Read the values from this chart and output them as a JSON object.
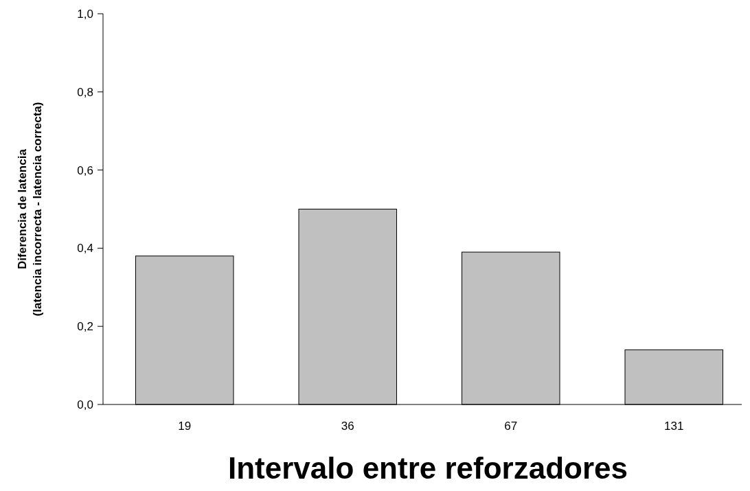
{
  "chart_data": {
    "type": "bar",
    "xlabel": "Intervalo entre reforzadores",
    "ylabel": "Diferencia de latencia\n(latencia incorrecta - latencia correcta)",
    "categories": [
      "19",
      "36",
      "67",
      "131"
    ],
    "values": [
      0.38,
      0.5,
      0.39,
      0.14
    ],
    "color": "#c0c0c0",
    "ylim": [
      0,
      1
    ],
    "yticks": [
      {
        "value": 0,
        "label": "0,0"
      },
      {
        "value": 0.2,
        "label": "0,2"
      },
      {
        "value": 0.4,
        "label": "0,4"
      },
      {
        "value": 0.6,
        "label": "0,6"
      },
      {
        "value": 0.8,
        "label": "0,8"
      },
      {
        "value": 1,
        "label": "1,0"
      }
    ]
  }
}
